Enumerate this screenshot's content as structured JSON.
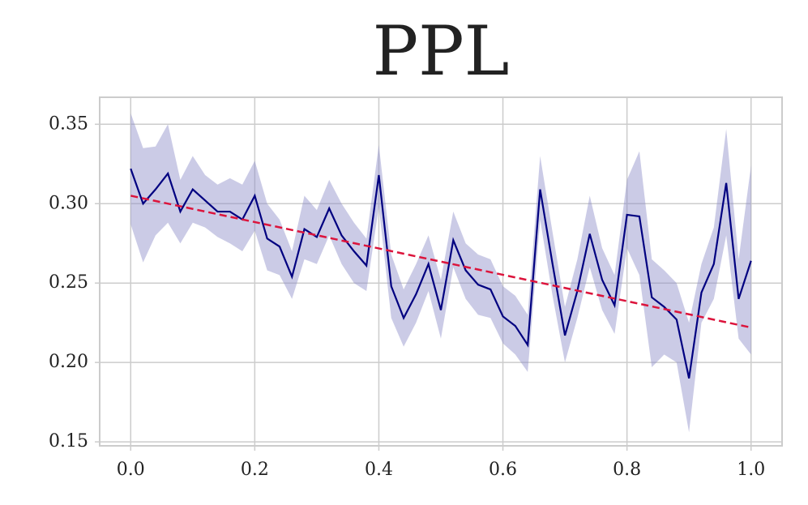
{
  "chart_data": {
    "type": "line",
    "title": "PPL",
    "x": [
      0,
      0.02,
      0.04,
      0.06,
      0.08,
      0.1,
      0.12,
      0.14,
      0.16,
      0.18,
      0.2,
      0.22,
      0.24,
      0.26,
      0.28,
      0.3,
      0.32,
      0.34,
      0.36,
      0.38,
      0.4,
      0.42,
      0.44,
      0.46,
      0.48,
      0.5,
      0.52,
      0.54,
      0.56,
      0.58,
      0.6,
      0.62,
      0.64,
      0.66,
      0.68,
      0.7,
      0.72,
      0.74,
      0.76,
      0.78,
      0.8,
      0.82,
      0.84,
      0.86,
      0.88,
      0.9,
      0.92,
      0.94,
      0.96,
      0.98,
      1
    ],
    "series": [
      {
        "color": "#000080",
        "band_color": "#8c8cc8",
        "values": [
          0.322,
          0.3,
          0.309,
          0.319,
          0.295,
          0.309,
          0.302,
          0.295,
          0.295,
          0.29,
          0.305,
          0.278,
          0.273,
          0.254,
          0.284,
          0.279,
          0.297,
          0.28,
          0.27,
          0.261,
          0.318,
          0.248,
          0.228,
          0.243,
          0.262,
          0.233,
          0.277,
          0.258,
          0.249,
          0.246,
          0.229,
          0.223,
          0.211,
          0.309,
          0.262,
          0.217,
          0.245,
          0.281,
          0.252,
          0.236,
          0.293,
          0.292,
          0.241,
          0.235,
          0.227,
          0.19,
          0.244,
          0.262,
          0.313,
          0.24,
          0.264
        ],
        "upper": [
          0.357,
          0.335,
          0.336,
          0.35,
          0.315,
          0.33,
          0.318,
          0.312,
          0.316,
          0.312,
          0.327,
          0.3,
          0.29,
          0.27,
          0.305,
          0.296,
          0.315,
          0.3,
          0.288,
          0.278,
          0.337,
          0.268,
          0.246,
          0.262,
          0.28,
          0.252,
          0.295,
          0.275,
          0.268,
          0.265,
          0.248,
          0.242,
          0.23,
          0.33,
          0.282,
          0.235,
          0.265,
          0.305,
          0.272,
          0.255,
          0.315,
          0.333,
          0.265,
          0.258,
          0.25,
          0.225,
          0.262,
          0.285,
          0.347,
          0.265,
          0.324
        ],
        "lower": [
          0.287,
          0.263,
          0.28,
          0.288,
          0.275,
          0.288,
          0.285,
          0.279,
          0.275,
          0.27,
          0.283,
          0.258,
          0.255,
          0.24,
          0.265,
          0.262,
          0.28,
          0.262,
          0.25,
          0.245,
          0.298,
          0.228,
          0.21,
          0.225,
          0.245,
          0.215,
          0.26,
          0.24,
          0.23,
          0.228,
          0.212,
          0.205,
          0.194,
          0.29,
          0.242,
          0.2,
          0.228,
          0.26,
          0.233,
          0.218,
          0.272,
          0.255,
          0.197,
          0.205,
          0.2,
          0.156,
          0.225,
          0.24,
          0.28,
          0.215,
          0.205
        ]
      },
      {
        "color": "#dc143c",
        "dashed": true,
        "x": [
          0,
          1
        ],
        "values": [
          0.305,
          0.222
        ]
      }
    ],
    "xlim": [
      -0.05,
      1.05
    ],
    "ylim": [
      0.1475,
      0.367
    ],
    "xticks": [
      {
        "value": 0,
        "label": "0.0"
      },
      {
        "value": 0.2,
        "label": "0.2"
      },
      {
        "value": 0.4,
        "label": "0.4"
      },
      {
        "value": 0.6,
        "label": "0.6"
      },
      {
        "value": 0.8,
        "label": "0.8"
      },
      {
        "value": 1,
        "label": "1.0"
      }
    ],
    "yticks": [
      0.15,
      {
        "value": 0.2,
        "label": "0.20"
      },
      0.25,
      {
        "value": 0.3,
        "label": "0.30"
      },
      0.35
    ],
    "grid": true
  }
}
